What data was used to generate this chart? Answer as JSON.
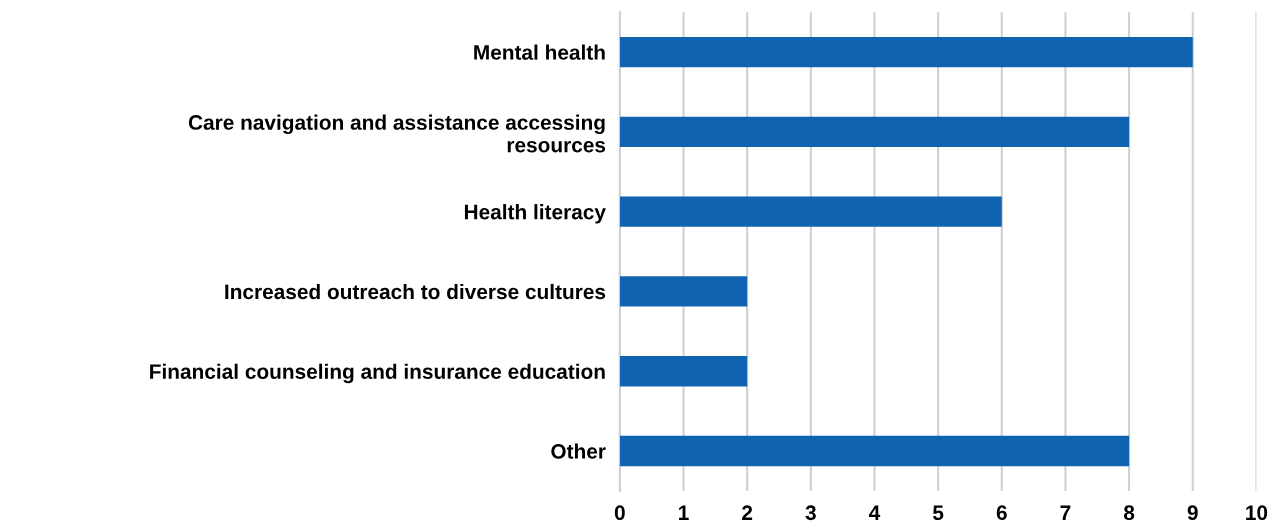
{
  "chart_data": {
    "type": "bar",
    "orientation": "horizontal",
    "categories": [
      "Mental health",
      "Care navigation and assistance accessing\nresources",
      "Health literacy",
      "Increased outreach to diverse cultures",
      "Financial counseling and insurance education",
      "Other"
    ],
    "values": [
      9,
      8,
      6,
      2,
      2,
      8
    ],
    "color": "#1063b0",
    "xlim": [
      0,
      10
    ],
    "xticks": [
      0,
      1,
      2,
      3,
      4,
      5,
      6,
      7,
      8,
      9,
      10
    ],
    "grid": "x"
  }
}
